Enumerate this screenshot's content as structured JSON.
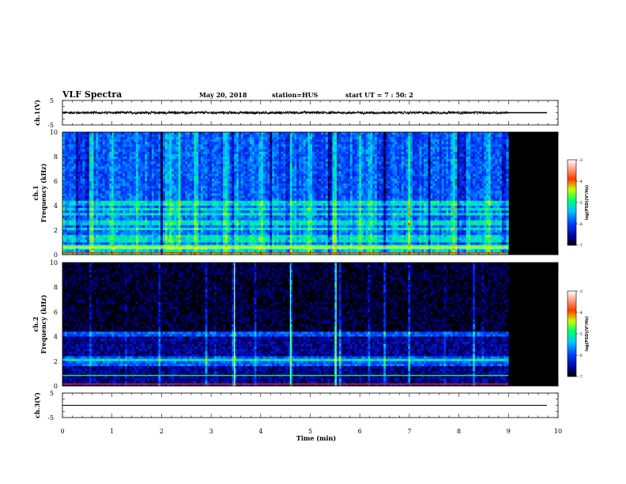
{
  "header": {
    "title": "VLF Spectra",
    "date": "May 20, 2018",
    "station": "station=HUS",
    "start": "start  UT  =   7 : 50: 2"
  },
  "colors": {
    "background": "#ffffff",
    "no_data": "#000000",
    "colormap": [
      "#ffffff",
      "#ff0000",
      "#ffff00",
      "#00ff40",
      "#00ffff",
      "#0060ff",
      "#0000c0",
      "#000000"
    ]
  },
  "chart_data": [
    {
      "type": "line",
      "name": "ch1-waveform",
      "ylabel": "ch.1(V)",
      "yticks": [
        "5",
        "-5"
      ],
      "ylim": [
        -5,
        5
      ],
      "xlim": [
        0,
        10
      ],
      "data_end_min": 9.0,
      "baseline_v": 0.0,
      "noise_amplitude_v": 0.6,
      "after_end": "flat line"
    },
    {
      "type": "heatmap",
      "name": "ch1-spectrogram",
      "ylabel_channel": "ch.1",
      "ylabel": "Frequency  (kHz)",
      "yticks": [
        "0",
        "2",
        "4",
        "6",
        "8",
        "10"
      ],
      "ylim": [
        0,
        10
      ],
      "xlim": [
        0,
        10
      ],
      "data_end_min": 9.0,
      "colorbar": {
        "label": "log(PSD)(V²/Hz)",
        "ticks": [
          "-3",
          "-4",
          "-5",
          "-6",
          "-7"
        ],
        "range": [
          -7,
          -3
        ]
      },
      "bands_khz": [
        0.15,
        0.5,
        0.65,
        1.2,
        1.5,
        2.1,
        2.6,
        3.3,
        3.7,
        4.2
      ],
      "bright_times_min": [
        0.6,
        1.0,
        1.5,
        2.1,
        2.2,
        2.35,
        2.7,
        3.3,
        3.5,
        4.0,
        4.6,
        5.0,
        5.5,
        6.0,
        6.2,
        7.0,
        7.9,
        8.6
      ],
      "dark_times_min": [
        0.3,
        0.5,
        2.0,
        3.45,
        4.2,
        4.55,
        5.4,
        6.5,
        7.4,
        8.0,
        8.1,
        8.9
      ],
      "background_level": -5.9
    },
    {
      "type": "heatmap",
      "name": "ch2-spectrogram",
      "ylabel_channel": "ch.2",
      "ylabel": "Frequency  (kHz)",
      "yticks": [
        "0",
        "2",
        "4",
        "6",
        "8",
        "10"
      ],
      "ylim": [
        0,
        10
      ],
      "xlim": [
        0,
        10
      ],
      "data_end_min": 9.0,
      "colorbar": {
        "label": "log(PSD)(V²/Hz)",
        "ticks": [
          "-3",
          "-4",
          "-5",
          "-6",
          "-7"
        ],
        "range": [
          -7,
          -3
        ]
      },
      "lines_khz": [
        0.15,
        0.85
      ],
      "bands_khz": [
        1.9,
        2.2,
        4.2
      ],
      "impulses_min": [
        0.55,
        1.3,
        1.95,
        2.25,
        2.9,
        3.1,
        3.45,
        3.6,
        3.9,
        4.6,
        5.5,
        5.6,
        6.2,
        6.5,
        7.0,
        7.7,
        8.3,
        8.5
      ],
      "strong_impulses_min": [
        3.47,
        4.6,
        5.52
      ],
      "background_level": -6.9
    },
    {
      "type": "line",
      "name": "ch3-waveform",
      "ylabel": "ch.3(V)",
      "yticks": [
        "5",
        "-5"
      ],
      "ylim": [
        -5,
        5
      ],
      "xlim": [
        0,
        10
      ],
      "baseline_v": 0.0
    }
  ],
  "xaxis": {
    "label": "Time  (min)",
    "ticks": [
      "0",
      "1",
      "2",
      "3",
      "4",
      "5",
      "6",
      "7",
      "8",
      "9",
      "10"
    ]
  }
}
